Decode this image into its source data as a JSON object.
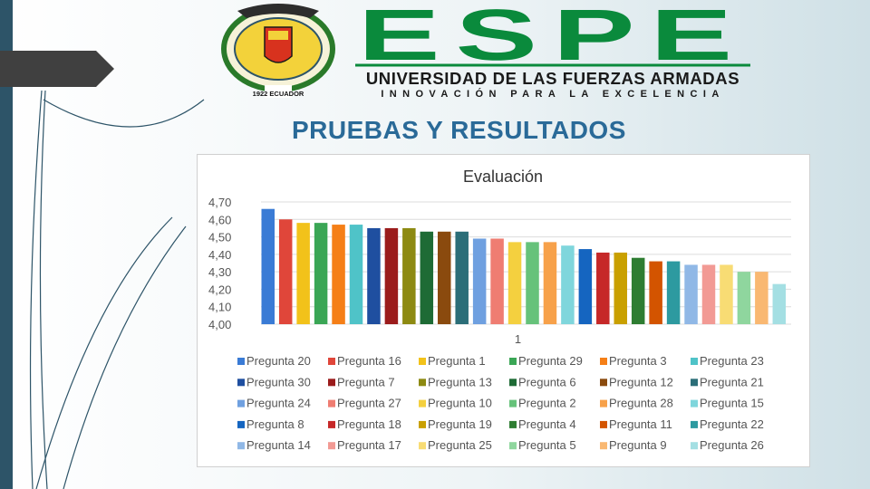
{
  "header": {
    "seal_caption": "1922 ECUADOR",
    "logo_word": "ESPE",
    "university": "UNIVERSIDAD DE LAS FUERZAS ARMADAS",
    "motto": "INNOVACIÓN PARA LA EXCELENCIA"
  },
  "slide": {
    "title": "PRUEBAS Y RESULTADOS"
  },
  "colors": {
    "brand_green": "#0a8a3c",
    "title_blue": "#2a6a98",
    "side_bar": "#2d5468"
  },
  "chart_data": {
    "type": "bar",
    "title": "Evaluación",
    "xlabel": "",
    "ylabel": "",
    "categories": [
      "1"
    ],
    "ylim": [
      4.0,
      4.7
    ],
    "ytick_labels": [
      "4,00",
      "4,10",
      "4,20",
      "4,30",
      "4,40",
      "4,50",
      "4,60",
      "4,70"
    ],
    "legend_position": "bottom",
    "grid": true,
    "series": [
      {
        "name": "Pregunta 20",
        "values": [
          4.66
        ],
        "color": "#3a7bd5"
      },
      {
        "name": "Pregunta 16",
        "values": [
          4.6
        ],
        "color": "#e0463a"
      },
      {
        "name": "Pregunta 1",
        "values": [
          4.58
        ],
        "color": "#f2c21a"
      },
      {
        "name": "Pregunta 29",
        "values": [
          4.58
        ],
        "color": "#3aa655"
      },
      {
        "name": "Pregunta 3",
        "values": [
          4.57
        ],
        "color": "#f57f17"
      },
      {
        "name": "Pregunta 23",
        "values": [
          4.57
        ],
        "color": "#4fc3c8"
      },
      {
        "name": "Pregunta 30",
        "values": [
          4.55
        ],
        "color": "#1f4fa0"
      },
      {
        "name": "Pregunta 7",
        "values": [
          4.55
        ],
        "color": "#9b1c1c"
      },
      {
        "name": "Pregunta 13",
        "values": [
          4.55
        ],
        "color": "#8d8a12"
      },
      {
        "name": "Pregunta 6",
        "values": [
          4.53
        ],
        "color": "#1e6b35"
      },
      {
        "name": "Pregunta 12",
        "values": [
          4.53
        ],
        "color": "#8a4a0e"
      },
      {
        "name": "Pregunta 21",
        "values": [
          4.53
        ],
        "color": "#2b6e78"
      },
      {
        "name": "Pregunta 24",
        "values": [
          4.49
        ],
        "color": "#6fa0e0"
      },
      {
        "name": "Pregunta 27",
        "values": [
          4.49
        ],
        "color": "#ef7d72"
      },
      {
        "name": "Pregunta 10",
        "values": [
          4.47
        ],
        "color": "#f4d03f"
      },
      {
        "name": "Pregunta 2",
        "values": [
          4.47
        ],
        "color": "#66c27a"
      },
      {
        "name": "Pregunta 28",
        "values": [
          4.47
        ],
        "color": "#f7a14a"
      },
      {
        "name": "Pregunta 15",
        "values": [
          4.45
        ],
        "color": "#7fd6dc"
      },
      {
        "name": "Pregunta 8",
        "values": [
          4.43
        ],
        "color": "#1565c0"
      },
      {
        "name": "Pregunta 18",
        "values": [
          4.41
        ],
        "color": "#c62828"
      },
      {
        "name": "Pregunta 19",
        "values": [
          4.41
        ],
        "color": "#c9a000"
      },
      {
        "name": "Pregunta 4",
        "values": [
          4.38
        ],
        "color": "#2e7d32"
      },
      {
        "name": "Pregunta 11",
        "values": [
          4.36
        ],
        "color": "#d35400"
      },
      {
        "name": "Pregunta 22",
        "values": [
          4.36
        ],
        "color": "#2d9aa0"
      },
      {
        "name": "Pregunta 14",
        "values": [
          4.34
        ],
        "color": "#90b8e6"
      },
      {
        "name": "Pregunta 17",
        "values": [
          4.34
        ],
        "color": "#f29a94"
      },
      {
        "name": "Pregunta 25",
        "values": [
          4.34
        ],
        "color": "#f8dc74"
      },
      {
        "name": "Pregunta 5",
        "values": [
          4.3
        ],
        "color": "#8fd69e"
      },
      {
        "name": "Pregunta 9",
        "values": [
          4.3
        ],
        "color": "#f9b872"
      },
      {
        "name": "Pregunta 26",
        "values": [
          4.23
        ],
        "color": "#a4dfe3"
      }
    ]
  }
}
